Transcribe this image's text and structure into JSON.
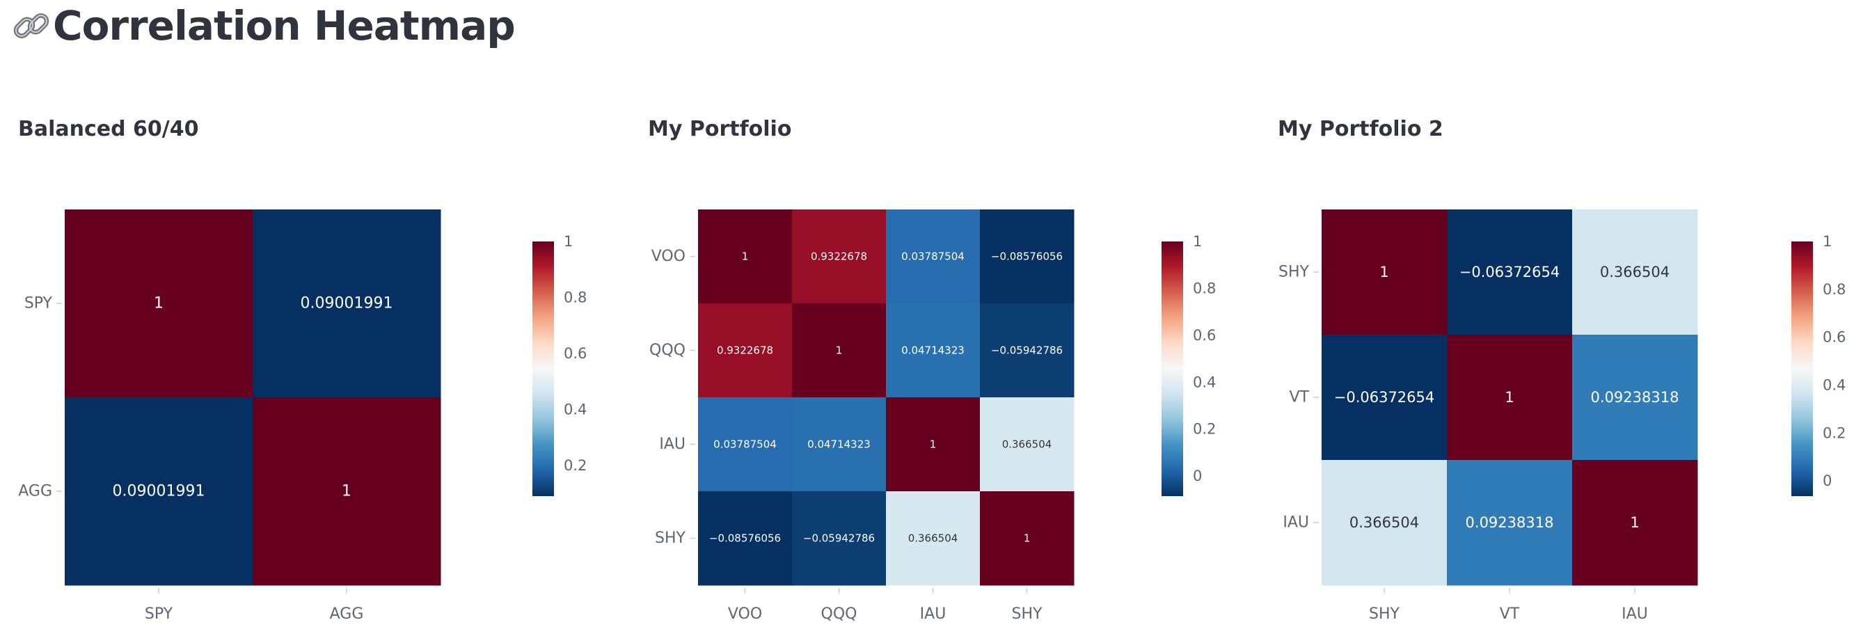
{
  "page": {
    "title": "Correlation Heatmap",
    "title_icon": "chain-link-icon"
  },
  "colorscale": [
    "#67001f",
    "#b2182b",
    "#d6604d",
    "#f4a582",
    "#fddbc7",
    "#f7f7f7",
    "#d1e5f0",
    "#92c5de",
    "#4393c3",
    "#2166ac",
    "#053061"
  ],
  "chart_data": [
    {
      "type": "heatmap",
      "title": "Balanced 60/40",
      "x": [
        "SPY",
        "AGG"
      ],
      "y": [
        "SPY",
        "AGG"
      ],
      "z": [
        [
          1,
          0.09001991
        ],
        [
          0.09001991,
          1
        ]
      ],
      "text": [
        [
          "1",
          "0.09001991"
        ],
        [
          "0.09001991",
          "1"
        ]
      ],
      "zrange": [
        0.09001991,
        1
      ],
      "colorbar_ticks": [
        0.2,
        0.4,
        0.6,
        0.8,
        1
      ],
      "colorbar_tick_labels": [
        "0.2",
        "0.4",
        "0.6",
        "0.8",
        "1"
      ]
    },
    {
      "type": "heatmap",
      "title": "My Portfolio",
      "x": [
        "VOO",
        "QQQ",
        "IAU",
        "SHY"
      ],
      "y": [
        "VOO",
        "QQQ",
        "IAU",
        "SHY"
      ],
      "z": [
        [
          1,
          0.9322678,
          0.03787504,
          -0.08576056
        ],
        [
          0.9322678,
          1,
          0.04714323,
          -0.05942786
        ],
        [
          0.03787504,
          0.04714323,
          1,
          0.366504
        ],
        [
          -0.08576056,
          -0.05942786,
          0.366504,
          1
        ]
      ],
      "text": [
        [
          "1",
          "0.9322678",
          "0.03787504",
          "−0.08576056"
        ],
        [
          "0.9322678",
          "1",
          "0.04714323",
          "−0.05942786"
        ],
        [
          "0.03787504",
          "0.04714323",
          "1",
          "0.366504"
        ],
        [
          "−0.08576056",
          "−0.05942786",
          "0.366504",
          "1"
        ]
      ],
      "zrange": [
        -0.08576056,
        1
      ],
      "colorbar_ticks": [
        0,
        0.2,
        0.4,
        0.6,
        0.8,
        1
      ],
      "colorbar_tick_labels": [
        "0",
        "0.2",
        "0.4",
        "0.6",
        "0.8",
        "1"
      ]
    },
    {
      "type": "heatmap",
      "title": "My Portfolio 2",
      "x": [
        "SHY",
        "VT",
        "IAU"
      ],
      "y": [
        "SHY",
        "VT",
        "IAU"
      ],
      "z": [
        [
          1,
          -0.06372654,
          0.366504
        ],
        [
          -0.06372654,
          1,
          0.09238318
        ],
        [
          0.366504,
          0.09238318,
          1
        ]
      ],
      "text": [
        [
          "1",
          "−0.06372654",
          "0.366504"
        ],
        [
          "−0.06372654",
          "1",
          "0.09238318"
        ],
        [
          "0.366504",
          "0.09238318",
          "1"
        ]
      ],
      "zrange": [
        -0.06372654,
        1
      ],
      "colorbar_ticks": [
        0,
        0.2,
        0.4,
        0.6,
        0.8,
        1
      ],
      "colorbar_tick_labels": [
        "0",
        "0.2",
        "0.4",
        "0.6",
        "0.8",
        "1"
      ]
    }
  ]
}
